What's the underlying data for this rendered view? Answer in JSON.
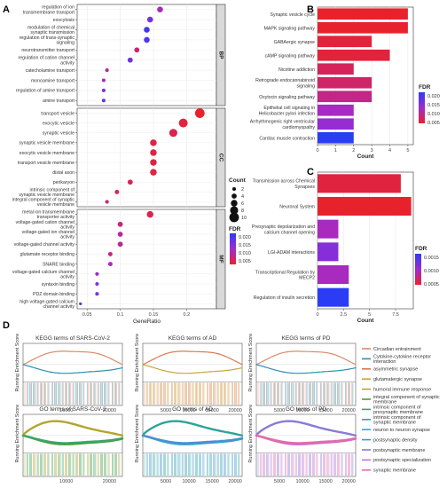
{
  "chart_data": [
    {
      "panel": "A",
      "type": "scatter",
      "xlabel": "GeneRatio",
      "xticks": [
        0.05,
        0.1,
        0.15,
        0.2
      ],
      "xlim": [
        0.035,
        0.245
      ],
      "groups": [
        {
          "name": "BP",
          "terms": [
            {
              "label": "regulation of ion transmembrane transport",
              "x": 0.16,
              "count": 5,
              "fdr": 0.01
            },
            {
              "label": "exocytosis",
              "x": 0.145,
              "count": 5,
              "fdr": 0.015
            },
            {
              "label": "modulation of chemical synaptic transmission",
              "x": 0.14,
              "count": 5,
              "fdr": 0.02
            },
            {
              "label": "regulation of trans-synaptic signaling",
              "x": 0.14,
              "count": 5,
              "fdr": 0.019
            },
            {
              "label": "neurotransmitter transport",
              "x": 0.125,
              "count": 4,
              "fdr": 0.005
            },
            {
              "label": "regulation of cation channel activity",
              "x": 0.115,
              "count": 4,
              "fdr": 0.016
            },
            {
              "label": "catecholamine transport",
              "x": 0.08,
              "count": 2,
              "fdr": 0.008
            },
            {
              "label": "monoamine transport",
              "x": 0.075,
              "count": 2,
              "fdr": 0.01
            },
            {
              "label": "regulation of amine transport",
              "x": 0.075,
              "count": 2,
              "fdr": 0.015
            },
            {
              "label": "amine transport",
              "x": 0.075,
              "count": 2,
              "fdr": 0.017
            }
          ]
        },
        {
          "name": "CC",
          "terms": [
            {
              "label": "transport vesicle",
              "x": 0.22,
              "count": 10,
              "fdr": 0.001
            },
            {
              "label": "exocytic vesicle",
              "x": 0.195,
              "count": 9,
              "fdr": 0.002
            },
            {
              "label": "synaptic vesicle",
              "x": 0.18,
              "count": 8,
              "fdr": 0.003
            },
            {
              "label": "synaptic vesicle membrane",
              "x": 0.15,
              "count": 6,
              "fdr": 0.0025
            },
            {
              "label": "exocytic vesicle membrane",
              "x": 0.15,
              "count": 6,
              "fdr": 0.0025
            },
            {
              "label": "transport vesicle membrane",
              "x": 0.15,
              "count": 6,
              "fdr": 0.0025
            },
            {
              "label": "distal axon",
              "x": 0.15,
              "count": 6,
              "fdr": 0.002
            },
            {
              "label": "perikaryon",
              "x": 0.115,
              "count": 4,
              "fdr": 0.003
            },
            {
              "label": "intrinsic component of synaptic vesicle membrane",
              "x": 0.095,
              "count": 3,
              "fdr": 0.004
            },
            {
              "label": "integral component of synaptic vesicle membrane",
              "x": 0.08,
              "count": 2,
              "fdr": 0.006
            }
          ]
        },
        {
          "name": "MF",
          "terms": [
            {
              "label": "metal ion transmembrane transporter activity",
              "x": 0.145,
              "count": 6,
              "fdr": 0.003
            },
            {
              "label": "voltage-gated cation channel activity",
              "x": 0.1,
              "count": 4,
              "fdr": 0.006
            },
            {
              "label": "voltage-gated ion channel activity",
              "x": 0.1,
              "count": 4,
              "fdr": 0.008
            },
            {
              "label": "voltage-gated channel activity",
              "x": 0.1,
              "count": 4,
              "fdr": 0.008
            },
            {
              "label": "glutamate receptor binding",
              "x": 0.085,
              "count": 3,
              "fdr": 0.006
            },
            {
              "label": "SNARE binding",
              "x": 0.085,
              "count": 3,
              "fdr": 0.01
            },
            {
              "label": "voltage-gated calcium channel activity",
              "x": 0.065,
              "count": 2,
              "fdr": 0.012
            },
            {
              "label": "syntaxin binding",
              "x": 0.065,
              "count": 2,
              "fdr": 0.014
            },
            {
              "label": "PDZ domain binding",
              "x": 0.065,
              "count": 2,
              "fdr": 0.015
            },
            {
              "label": "high voltage-gated calcium channel activity",
              "x": 0.04,
              "count": 1,
              "fdr": 0.018
            }
          ]
        }
      ],
      "legend": {
        "count_title": "Count",
        "counts": [
          2,
          4,
          6,
          8,
          10
        ],
        "fdr_title": "FDR",
        "fdr_ticks": [
          "0.020",
          "0.015",
          "0.010",
          "0.005"
        ]
      }
    },
    {
      "panel": "B",
      "type": "bar",
      "orientation": "horizontal",
      "xlabel": "Count",
      "xticks": [
        0,
        1,
        2,
        3,
        4,
        5
      ],
      "xlim": [
        0,
        5.3
      ],
      "categories": [
        "Synaptic vesicle cycle",
        "MAPK signaling pathway",
        "GABAergic synapse",
        "cAMP signaling pathway",
        "Nicotine addiction",
        "Retrograde endocannabinoid signaling",
        "Oxytocin signaling pathway",
        "Epithelial cell signaling in Helicobacter pylori infection",
        "Arrhythmogenic right ventricular cardiomyopathy",
        "Cardiac muscle contraction"
      ],
      "values": [
        5,
        5,
        3,
        4,
        2,
        3,
        3,
        2,
        2,
        2
      ],
      "fdr": [
        0.002,
        0.002,
        0.003,
        0.003,
        0.005,
        0.006,
        0.008,
        0.012,
        0.014,
        0.024
      ],
      "legend": {
        "title": "FDR",
        "ticks": [
          "0.020",
          "0.015",
          "0.010",
          "0.005"
        ]
      }
    },
    {
      "panel": "C",
      "type": "bar",
      "orientation": "horizontal",
      "xlabel": "Count",
      "xticks": [
        0,
        2.5,
        5,
        7.5
      ],
      "xlim": [
        0,
        9.2
      ],
      "categories": [
        "Transmission across Chemical Synapses",
        "Neuronal System",
        "Presynaptic depolarization and calcium channel opening",
        "LGI-ADAM interactions",
        "Transcriptional Regulation by MECP2",
        "Regulation of insulin secretion"
      ],
      "values": [
        8,
        9,
        2,
        2,
        3,
        3
      ],
      "fdr": [
        0.0002,
        0.0001,
        0.0009,
        0.0012,
        0.0009,
        0.0019
      ],
      "legend": {
        "title": "FDR",
        "ticks": [
          "0.0015",
          "0.0010",
          "0.0005"
        ]
      }
    },
    {
      "panel": "D",
      "type": "line",
      "ylabel": "Running Enrichment Score",
      "plots": [
        {
          "title": "KEGG terms of SARS-CoV-2",
          "xticks": [
            "10000",
            "20000"
          ],
          "series": [
            "Circadian entrainment",
            "Cytokine-cytokine receptor interaction"
          ]
        },
        {
          "title": "KEGG terms of AD",
          "xticks": [
            "5000",
            "10000",
            "15000",
            "20000"
          ],
          "series": [
            "asymmetric synapse",
            "glutamatergic synapse"
          ]
        },
        {
          "title": "KEGG terms of PD",
          "xticks": [
            "5000",
            "10000",
            "15000",
            "20000"
          ],
          "series": [
            "Circadian entrainment",
            "Cytokine-cytokine receptor interaction"
          ]
        },
        {
          "title": "GO terms of SARS-CoV-2",
          "xticks": [
            "10000",
            "20000"
          ],
          "series": [
            "humoral immune response",
            "integral component of synaptic membrane",
            "intrinsic component of presynaptic membrane"
          ]
        },
        {
          "title": "GO terms of AD",
          "xticks": [
            "5000",
            "10000",
            "15000",
            "20000"
          ],
          "series": [
            "intrinsic component of synaptic membrane",
            "neuron to neuron synapse",
            "postsynaptic density"
          ]
        },
        {
          "title": "GO terms of PD",
          "xticks": [
            "5000",
            "10000",
            "15000",
            "20000"
          ],
          "series": [
            "postsynaptic membrane",
            "postsynaptic specialization",
            "synaptic membrane"
          ]
        }
      ],
      "legend": [
        {
          "name": "Circadian entrainment",
          "color": "#d98a6a"
        },
        {
          "name": "Cytokine-cytokine receptor interaction",
          "color": "#2a8fb0"
        },
        {
          "name": "asymmetric synapse",
          "color": "#d9784f"
        },
        {
          "name": "glutamatergic synapse",
          "color": "#c9a437"
        },
        {
          "name": "humoral immune response",
          "color": "#b3a52e"
        },
        {
          "name": "integral component of synaptic membrane",
          "color": "#4a9c3a"
        },
        {
          "name": "intrinsic component of presynaptic membrane",
          "color": "#3aa56a"
        },
        {
          "name": "intrinsic component of synaptic membrane",
          "color": "#2fa39a"
        },
        {
          "name": "neuron to neuron synapse",
          "color": "#33a6c9"
        },
        {
          "name": "postsynaptic density",
          "color": "#4a8fd6"
        },
        {
          "name": "postsynaptic membrane",
          "color": "#8a7ad8"
        },
        {
          "name": "postsynaptic specialization",
          "color": "#c46ed0"
        },
        {
          "name": "synaptic membrane",
          "color": "#e56aa8"
        }
      ]
    }
  ]
}
